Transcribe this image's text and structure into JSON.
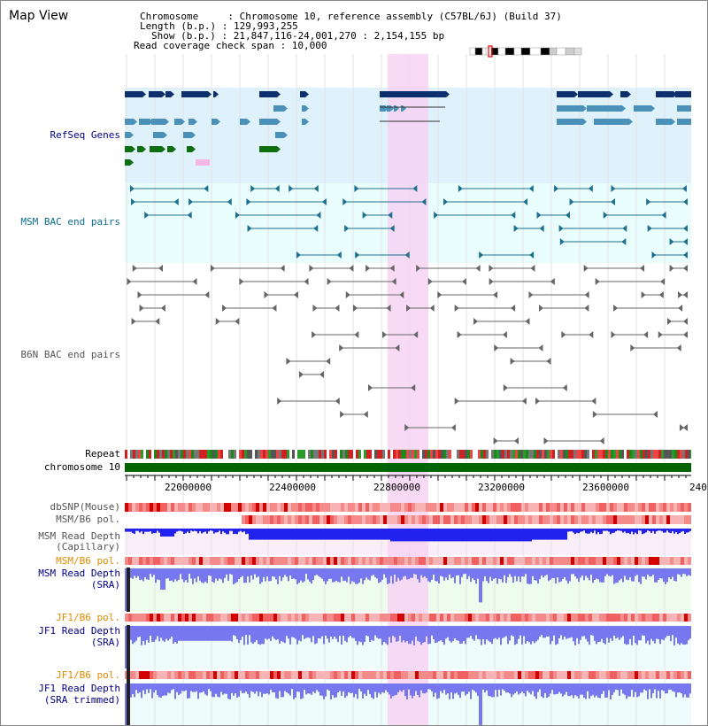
{
  "title": "Map View",
  "info": {
    "chromosome": "Chromosome     : Chromosome 10, reference assembly (C57BL/6J) (Build 37)",
    "length": "Length (b.p.) : 129,993,255",
    "show": "Show (b.p.) : 21,847,116-24,001,270 : 2,154,155 bp",
    "coverage": "Read coverage check span : 10,000"
  },
  "tracks": {
    "refseq": "RefSeq Genes",
    "msm_bac": "MSM BAC end pairs",
    "b6n_bac": "B6N BAC end pairs",
    "repeat": "Repeat",
    "chromosome": "chromosome 10",
    "dbsnp": "dbSNP(Mouse)",
    "msm_b6_pol_1": "MSM/B6 pol.",
    "msm_read_depth_cap_1": "MSM Read Depth",
    "msm_read_depth_cap_2": "(Capillary)",
    "msm_b6_pol_2": "MSM/B6 pol.",
    "msm_read_depth_sra_1": "MSM Read Depth",
    "msm_read_depth_sra_2": "(SRA)",
    "jf1_b6_pol_1": "JF1/B6 pol.",
    "jf1_read_depth_sra_1": "JF1 Read Depth",
    "jf1_read_depth_sra_2": "(SRA)",
    "jf1_b6_pol_2": "JF1/B6 pol.",
    "jf1_read_depth_trim_1": "JF1 Read Depth",
    "jf1_read_depth_trim_2": "(SRA trimmed)"
  },
  "axis": {
    "ticks": [
      "22000000",
      "22400000",
      "22800000",
      "23200000",
      "23600000",
      "240"
    ]
  },
  "colors": {
    "refseq_bg": "#dff2fb",
    "bac_bg": "#eafdfd",
    "highlight": "#f7d3f3",
    "navy_gene": "#0d2f6e",
    "teal_gene": "#4a90b8",
    "green_gene": "#0f6e0f",
    "chromosome_bar": "#006400",
    "depth_blue": "#2222ee",
    "depth_light": "#7777f0"
  }
}
